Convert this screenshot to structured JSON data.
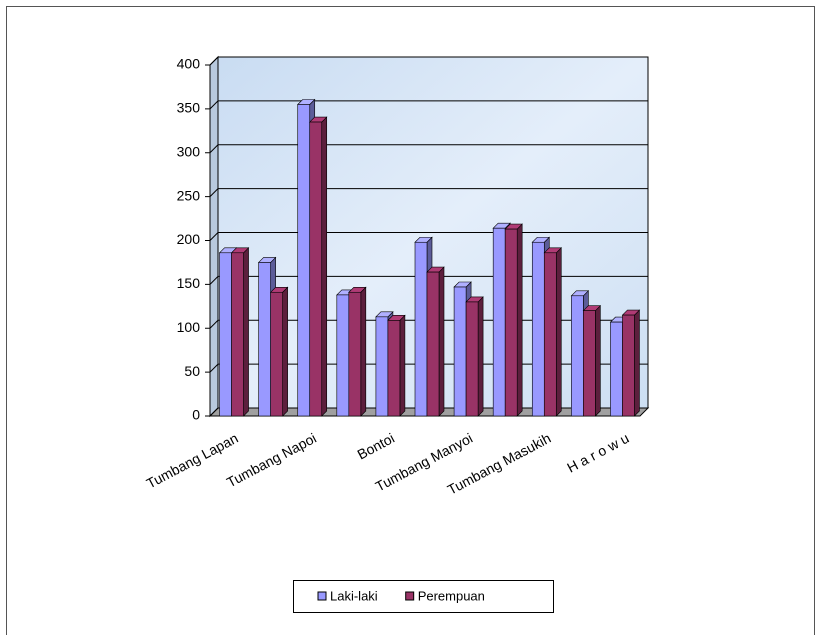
{
  "chart_data": {
    "type": "bar",
    "categories": [
      "Tumbang Lapan",
      null,
      "Tumbang Napoi",
      null,
      "Bontoi",
      null,
      "Tumbang Manyoi",
      null,
      "Tumbang Masukih",
      null,
      "H a r o w u"
    ],
    "series": [
      {
        "name": "Laki-laki",
        "color": "#9999ff",
        "values": [
          186,
          175,
          355,
          138,
          113,
          198,
          147,
          214,
          198,
          137,
          107
        ]
      },
      {
        "name": "Perempuan",
        "color": "#993366",
        "values": [
          186,
          141,
          335,
          141,
          109,
          164,
          130,
          213,
          186,
          120,
          115
        ]
      }
    ],
    "ylim": [
      0,
      400
    ],
    "yticks": [
      0,
      50,
      100,
      150,
      200,
      250,
      300,
      350,
      400
    ],
    "grid": true,
    "legend": "bottom"
  }
}
